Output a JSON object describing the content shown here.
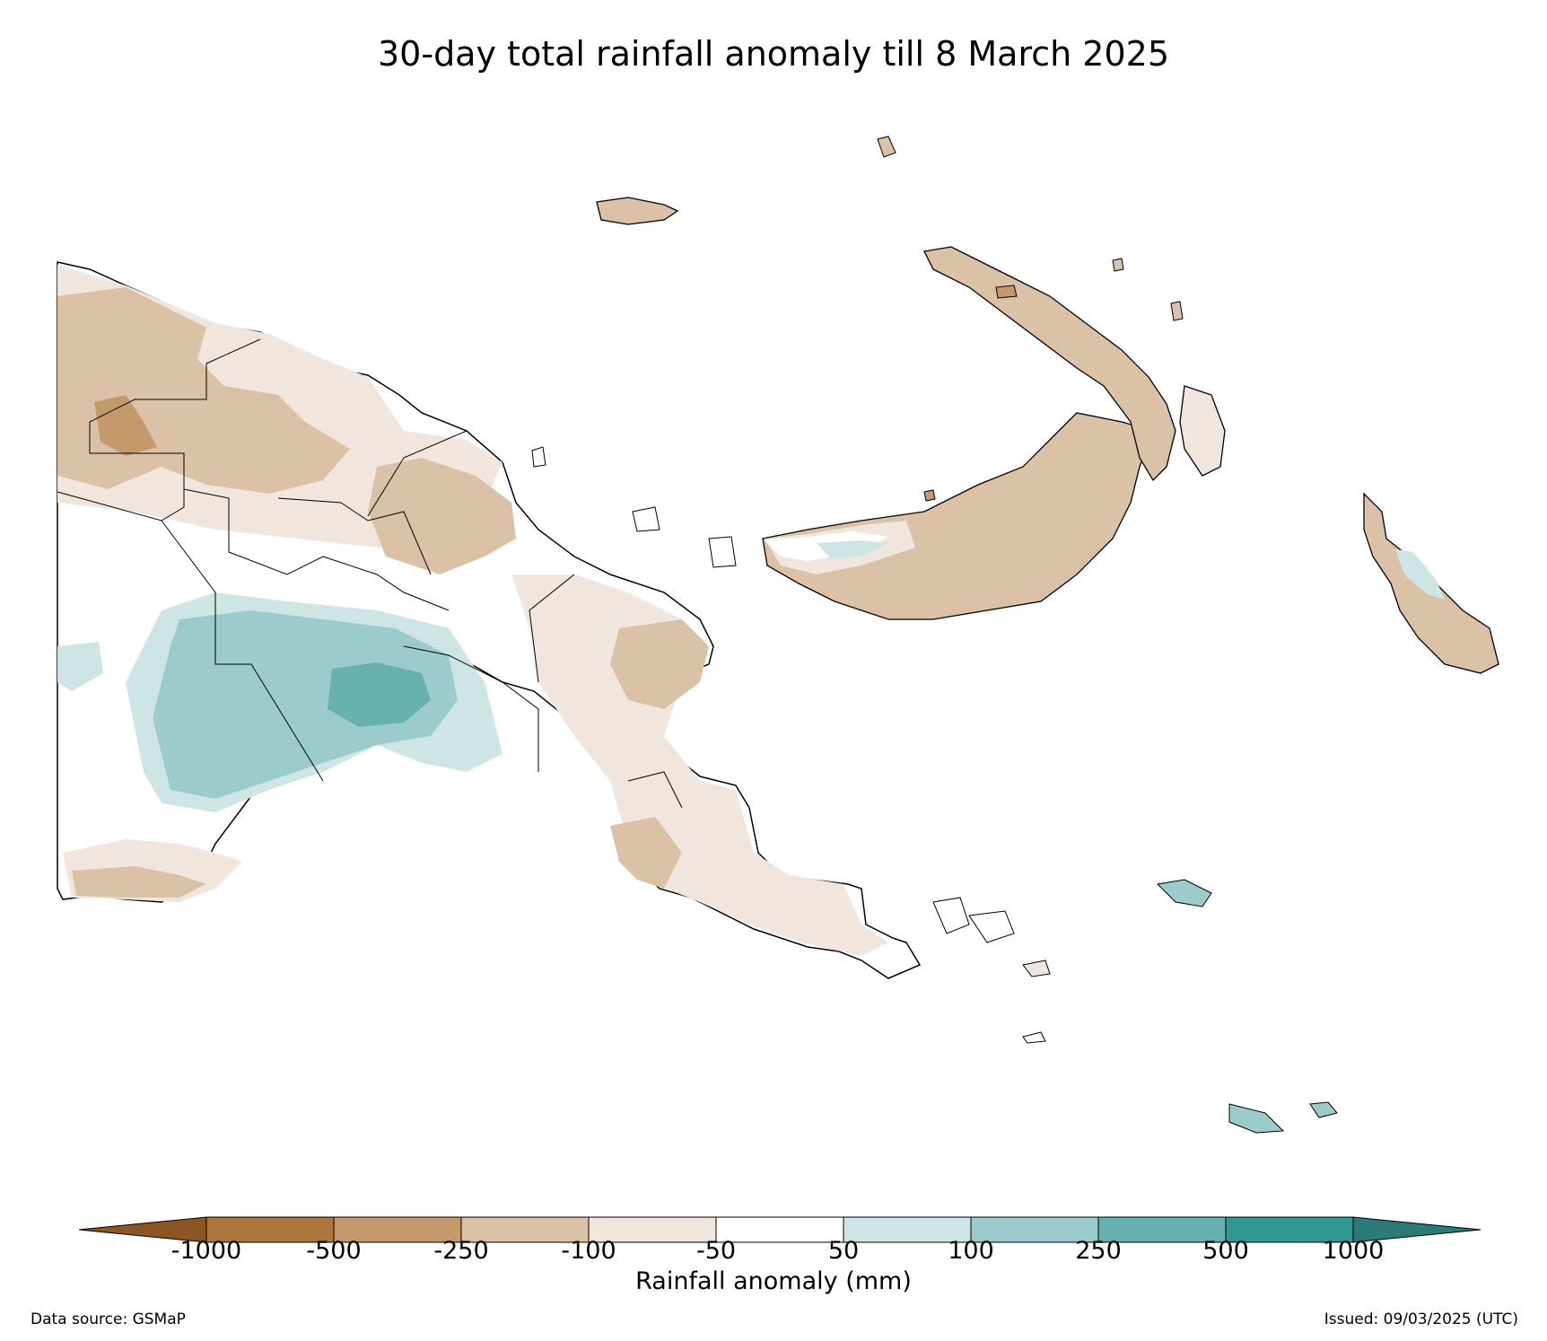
{
  "title": "30-day total rainfall anomaly till 8 March 2025",
  "colorbar": {
    "label": "Rainfall anomaly (mm)",
    "ticks": [
      "-1000",
      "-500",
      "-250",
      "-100",
      "-50",
      "50",
      "100",
      "250",
      "500",
      "1000"
    ],
    "under_color": "#8c5523",
    "over_color": "#2a7b76",
    "bins": [
      {
        "from": -1000,
        "to": -500,
        "color": "#ad763c"
      },
      {
        "from": -500,
        "to": -250,
        "color": "#c49a6d"
      },
      {
        "from": -250,
        "to": -100,
        "color": "#dbc1a6"
      },
      {
        "from": -100,
        "to": -50,
        "color": "#f1e6de"
      },
      {
        "from": -50,
        "to": 50,
        "color": "#ffffff"
      },
      {
        "from": 50,
        "to": 100,
        "color": "#cde6e5"
      },
      {
        "from": 100,
        "to": 250,
        "color": "#9bcccb"
      },
      {
        "from": 250,
        "to": 500,
        "color": "#67b1ae"
      },
      {
        "from": 500,
        "to": 1000,
        "color": "#319991"
      }
    ]
  },
  "footer": {
    "source": "Data source: GSMaP",
    "issued": "Issued: 09/03/2025 (UTC)"
  }
}
